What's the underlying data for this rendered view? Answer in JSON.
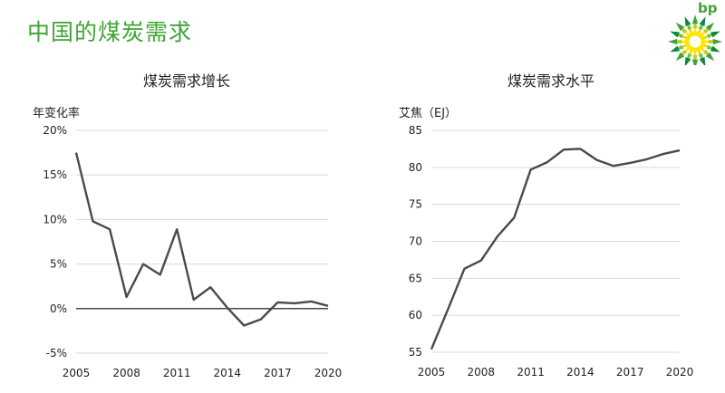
{
  "page": {
    "title": "中国的煤炭需求",
    "brand_text": "bp",
    "colors": {
      "title": "#3fa535",
      "line": "#4a4a4a",
      "grid": "#d9d9d9"
    }
  },
  "chart_data": [
    {
      "type": "line",
      "title": "煤炭需求增长",
      "ylabel": "年变化率",
      "xlabel": "",
      "x": [
        2005,
        2006,
        2007,
        2008,
        2009,
        2010,
        2011,
        2012,
        2013,
        2014,
        2015,
        2016,
        2017,
        2018,
        2019,
        2020
      ],
      "series": [
        {
          "values": [
            17.5,
            9.8,
            8.9,
            1.3,
            5.0,
            3.8,
            8.9,
            1.0,
            2.4,
            0.1,
            -1.9,
            -1.2,
            0.7,
            0.6,
            0.8,
            0.3
          ]
        }
      ],
      "ylim": [
        -5,
        20
      ],
      "yticks": [
        -5,
        0,
        5,
        10,
        15,
        20
      ],
      "ytick_labels": [
        "-5%",
        "0%",
        "5%",
        "10%",
        "15%",
        "20%"
      ],
      "xticks": [
        2005,
        2008,
        2011,
        2014,
        2017,
        2020
      ],
      "xtick_labels": [
        "2005",
        "2008",
        "2011",
        "2014",
        "2017",
        "2020"
      ],
      "grid": true,
      "zero_line": true
    },
    {
      "type": "line",
      "title": "煤炭需求水平",
      "ylabel": "艾焦（EJ）",
      "xlabel": "",
      "x": [
        2005,
        2006,
        2007,
        2008,
        2009,
        2010,
        2011,
        2012,
        2013,
        2014,
        2015,
        2016,
        2017,
        2018,
        2019,
        2020
      ],
      "series": [
        {
          "values": [
            55.4,
            60.8,
            66.3,
            67.4,
            70.7,
            73.2,
            79.7,
            80.7,
            82.4,
            82.5,
            81.0,
            80.2,
            80.6,
            81.1,
            81.8,
            82.3
          ]
        }
      ],
      "ylim": [
        55,
        85
      ],
      "yticks": [
        55,
        60,
        65,
        70,
        75,
        80,
        85
      ],
      "ytick_labels": [
        "55",
        "60",
        "65",
        "70",
        "75",
        "80",
        "85"
      ],
      "xticks": [
        2005,
        2008,
        2011,
        2014,
        2017,
        2020
      ],
      "xtick_labels": [
        "2005",
        "2008",
        "2011",
        "2014",
        "2017",
        "2020"
      ],
      "grid": true,
      "zero_line": false
    }
  ]
}
